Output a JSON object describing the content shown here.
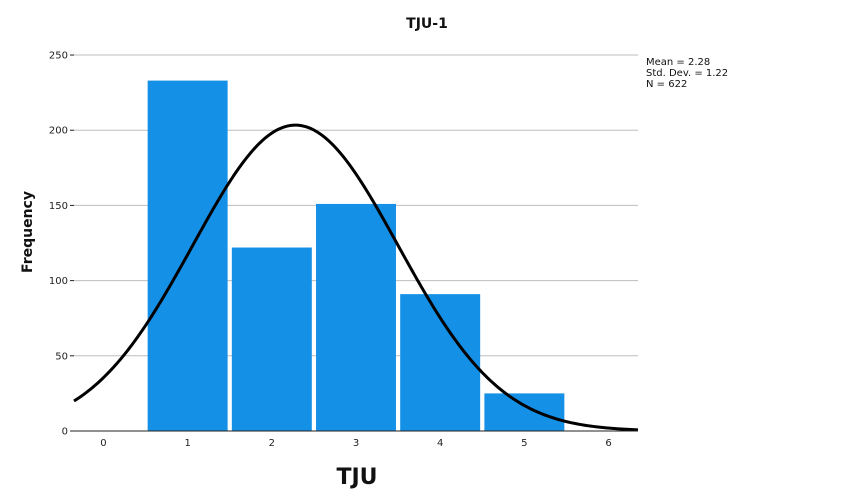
{
  "chart_data": {
    "type": "bar",
    "title": "TJU-1",
    "xlabel": "TJU",
    "ylabel": "Frequency",
    "categories": [
      "1",
      "2",
      "3",
      "4",
      "5"
    ],
    "x": [
      1,
      2,
      3,
      4,
      5
    ],
    "values": [
      233,
      122,
      151,
      91,
      25
    ],
    "x_ticks": [
      "0",
      "1",
      "2",
      "3",
      "4",
      "5",
      "6"
    ],
    "y_ticks": [
      "0",
      "50",
      "100",
      "150",
      "200",
      "250"
    ],
    "xlim": [
      -0.35,
      6.35
    ],
    "ylim": [
      0,
      260
    ],
    "grid": true,
    "bar_color": "#1490E6",
    "curve_color": "#000000",
    "normal_curve": {
      "mean": 2.28,
      "std_dev": 1.22,
      "n": 622
    },
    "stats": {
      "mean": "Mean = 2.28",
      "std_dev": "Std. Dev. = 1.22",
      "n": "N = 622"
    }
  }
}
